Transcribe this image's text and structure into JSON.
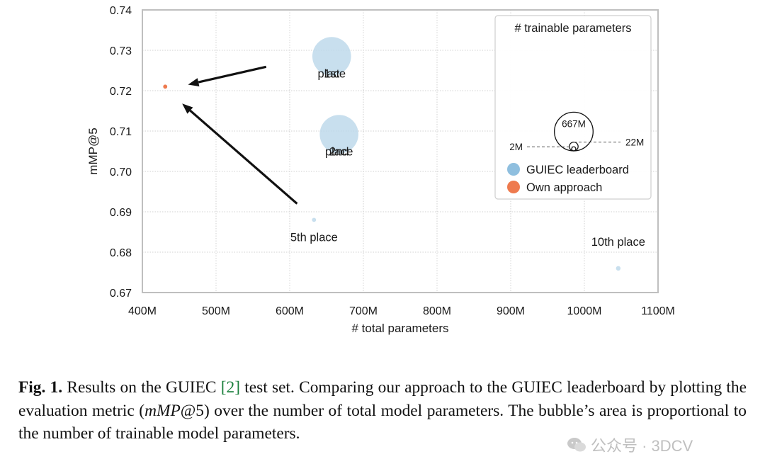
{
  "chart_data": {
    "type": "scatter",
    "xlabel": "# total parameters",
    "ylabel": "mMP@5",
    "xlim": [
      400,
      1100
    ],
    "ylim": [
      0.67,
      0.74
    ],
    "xticks": [
      400,
      500,
      600,
      700,
      800,
      900,
      1000,
      1100
    ],
    "xtick_labels": [
      "400M",
      "500M",
      "600M",
      "700M",
      "800M",
      "900M",
      "1000M",
      "1100M"
    ],
    "yticks": [
      0.67,
      0.68,
      0.69,
      0.7,
      0.71,
      0.72,
      0.73,
      0.74
    ],
    "ytick_labels": [
      "0.67",
      "0.68",
      "0.69",
      "0.70",
      "0.71",
      "0.72",
      "0.73",
      "0.74"
    ],
    "grid": true,
    "series": [
      {
        "name": "GUIEC leaderboard",
        "color": "#bcd8ea",
        "points": [
          {
            "x": 657,
            "y": 0.7285,
            "trainable": 667,
            "label": "1st\nplace"
          },
          {
            "x": 667,
            "y": 0.7092,
            "trainable": 667,
            "label": "2nd\nplace"
          },
          {
            "x": 633,
            "y": 0.688,
            "trainable": 2,
            "label": "5th place"
          },
          {
            "x": 1046,
            "y": 0.676,
            "trainable": 3,
            "label": "10th place"
          }
        ]
      },
      {
        "name": "Own approach",
        "color": "#ee7a4e",
        "points": [
          {
            "x": 431,
            "y": 0.721,
            "trainable": 2
          }
        ]
      }
    ],
    "arrows": [
      {
        "from": [
          568,
          0.7259
        ],
        "to": [
          462,
          0.7215
        ]
      },
      {
        "from": [
          610,
          0.692
        ],
        "to": [
          454,
          0.7168
        ]
      }
    ],
    "legend": {
      "placement": "top-right",
      "title": "# trainable parameters",
      "sizes": [
        {
          "label": "667M",
          "value": 667
        },
        {
          "label": "22M",
          "value": 22
        },
        {
          "label": "2M",
          "value": 2
        }
      ],
      "entries": [
        "GUIEC leaderboard",
        "Own approach"
      ]
    }
  },
  "caption": {
    "label": "Fig. 1.",
    "part1": " Results on the GUIEC ",
    "ref": "[2]",
    "part2": " test set. Comparing our approach to the GUIEC leaderboard by plotting the evaluation metric (",
    "math": "mMP",
    "part3": "@5) over the number of total model parameters. The bubble’s area is proportional to the number of trainable model parameters."
  },
  "watermark": "公众号 · 3DCV",
  "colors": {
    "leaderboard": "#bcd8ea",
    "leaderboard_legend": "#8fbfdf",
    "own": "#ee7a4e",
    "axes": "#bfbfbf"
  }
}
